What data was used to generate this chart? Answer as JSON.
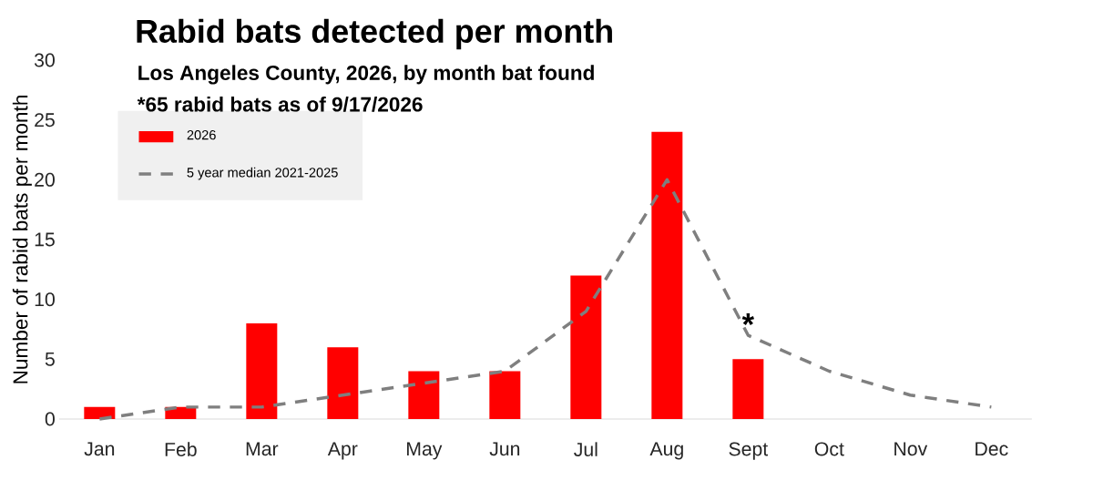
{
  "chart_data": {
    "type": "bar",
    "title": "Rabid bats detected per month",
    "subtitle": "Los Angeles County, 2026, by month bat found",
    "annotations": [
      "*65 rabid bats as of 9/17/2026",
      {
        "text": "*",
        "x": "Sept",
        "y": 6.3
      }
    ],
    "ylabel": "Number of rabid bats per month",
    "categories": [
      "Jan",
      "Feb",
      "Mar",
      "Apr",
      "May",
      "Jun",
      "Jul",
      "Aug",
      "Sept",
      "Oct",
      "Nov",
      "Dec"
    ],
    "series": [
      {
        "name": "2026",
        "color": "#ff0000",
        "values": [
          1,
          1,
          8,
          6,
          4,
          4,
          12,
          24,
          5,
          null,
          null,
          null
        ]
      },
      {
        "name": "5 year median 2021-2025",
        "type": "line",
        "color": "#7f7f7f",
        "line_style": "dashed",
        "marker": "none",
        "values": [
          0,
          1,
          1,
          2,
          3,
          4,
          9,
          20,
          7,
          4,
          2,
          1
        ]
      }
    ],
    "ylim": [
      0,
      30
    ],
    "yticks": [
      0,
      5,
      10,
      15,
      20,
      25,
      30
    ],
    "grid": false,
    "legend": "top left"
  }
}
